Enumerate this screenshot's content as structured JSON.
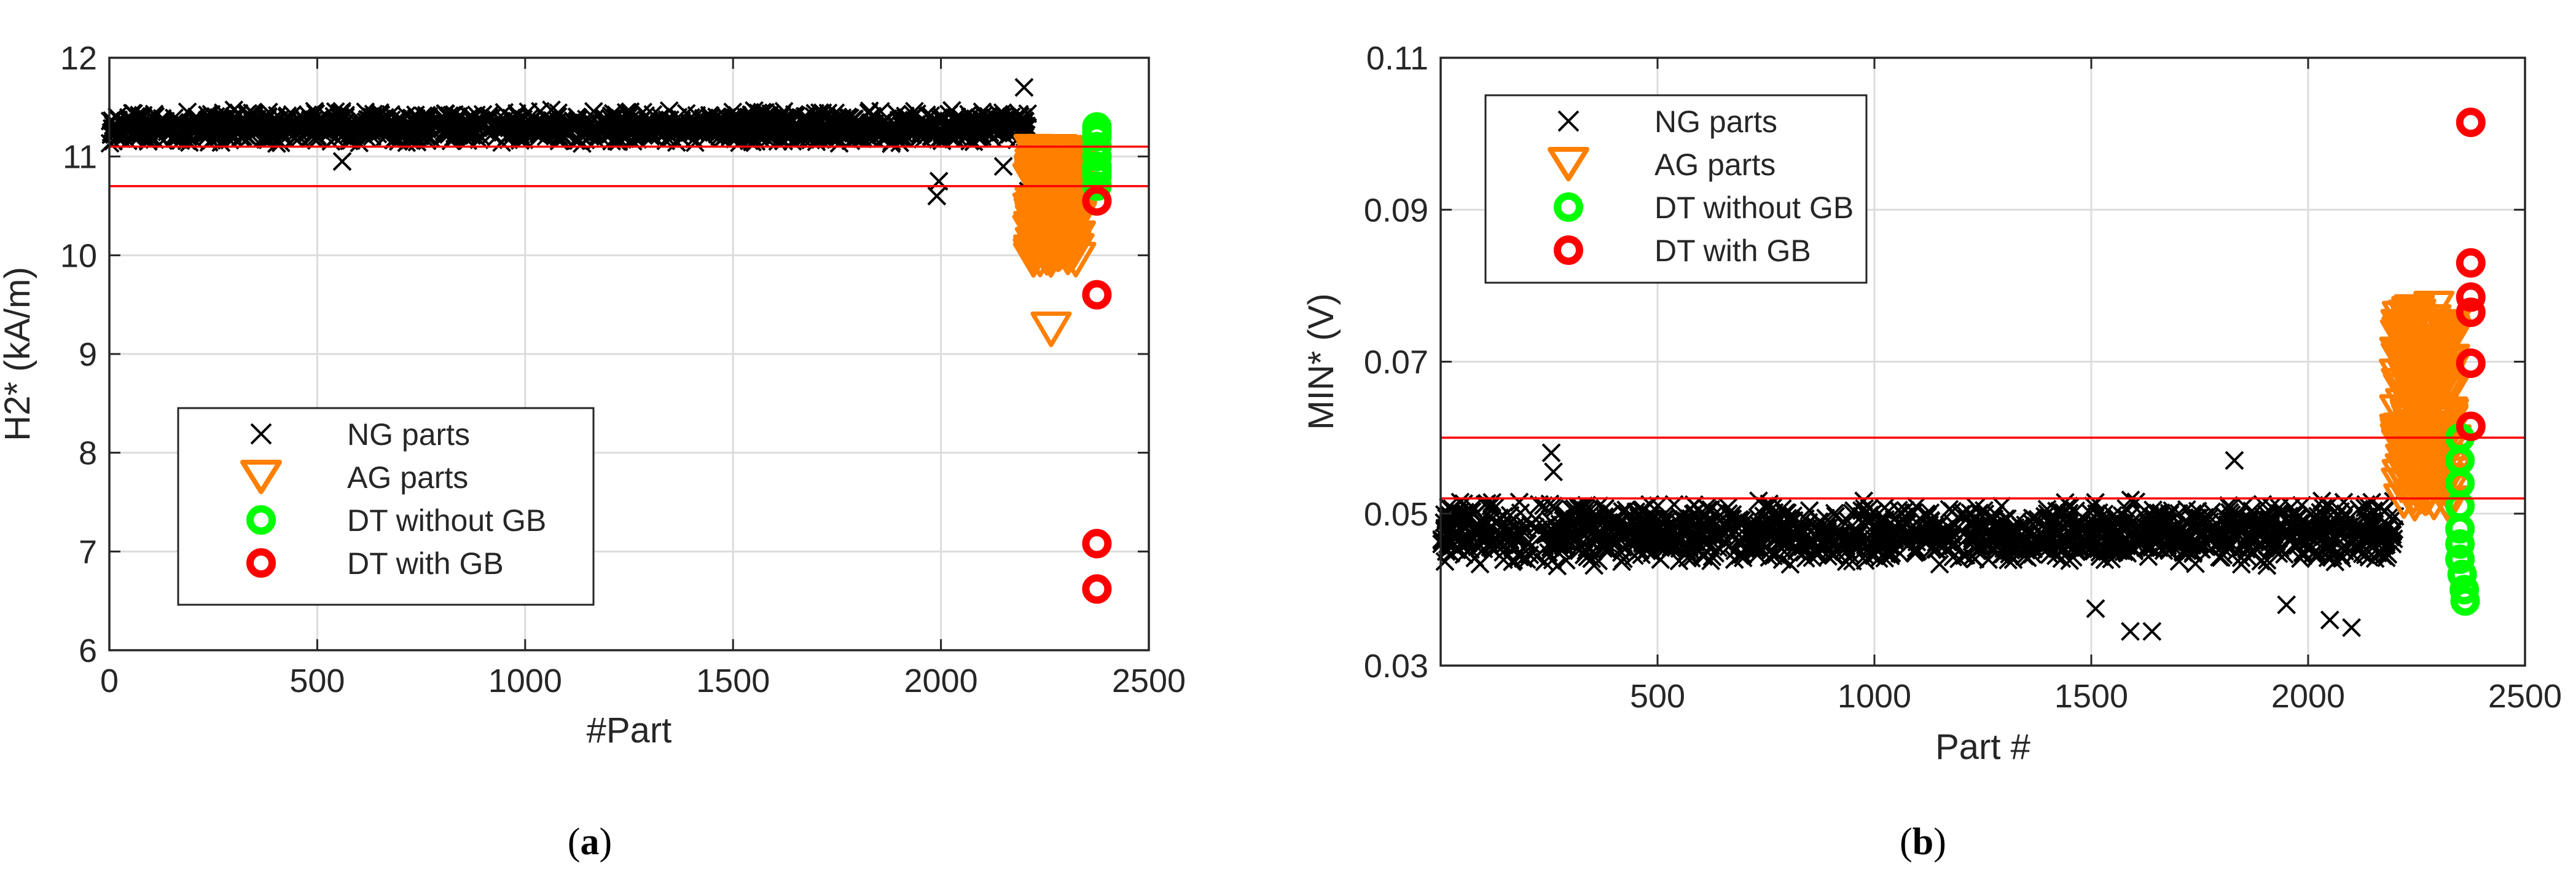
{
  "chart_data": [
    {
      "type": "scatter",
      "panel_label": "a",
      "xlabel": "#Part",
      "ylabel": "H2* (kA/m)",
      "xlim": [
        0,
        2500
      ],
      "ylim": [
        6,
        12
      ],
      "xticks": [
        0,
        500,
        1000,
        1500,
        2000,
        2500
      ],
      "yticks": [
        6,
        7,
        8,
        9,
        10,
        11,
        12
      ],
      "xtick_labels": [
        "0",
        "500",
        "1000",
        "1500",
        "2000",
        "2500"
      ],
      "ytick_labels": [
        "6",
        "7",
        "8",
        "9",
        "10",
        "11",
        "12"
      ],
      "grid": true,
      "legend_position": "lower-left",
      "threshold_lines": [
        11.1,
        10.7
      ],
      "series": [
        {
          "name": "NG parts",
          "marker": "x",
          "color": "#000000",
          "band": {
            "x_range": [
              0,
              2210
            ],
            "y_center": 11.3,
            "y_halfwidth": 0.18
          },
          "outliers": [
            [
              560,
              10.95
            ],
            [
              1990,
              10.6
            ],
            [
              1995,
              10.75
            ],
            [
              2210,
              10.65
            ],
            [
              2150,
              10.9
            ],
            [
              2200,
              11.7
            ]
          ]
        },
        {
          "name": "AG parts",
          "marker": "triangle-down",
          "color": "#FF7F00",
          "band": {
            "x_range": [
              2220,
              2330
            ],
            "y_center": 10.5,
            "y_halfwidth": 0.55
          },
          "outliers": [
            [
              2265,
              9.25
            ]
          ]
        },
        {
          "name": "DT without GB",
          "marker": "circle",
          "color": "#00FF00",
          "points": [
            [
              2375,
              11.3
            ],
            [
              2375,
              11.2
            ],
            [
              2375,
              11.1
            ],
            [
              2375,
              11.0
            ],
            [
              2375,
              10.9
            ],
            [
              2375,
              10.85
            ],
            [
              2375,
              10.8
            ],
            [
              2375,
              10.7
            ],
            [
              2375,
              11.25
            ]
          ]
        },
        {
          "name": "DT with GB",
          "marker": "circle",
          "color": "#FF0000",
          "points": [
            [
              2375,
              10.55
            ],
            [
              2375,
              9.6
            ],
            [
              2375,
              7.08
            ],
            [
              2375,
              6.62
            ]
          ]
        }
      ]
    },
    {
      "type": "scatter",
      "panel_label": "b",
      "xlabel": "Part #",
      "ylabel": "MIN* (V)",
      "xlim": [
        0,
        2500
      ],
      "ylim": [
        0.03,
        0.11
      ],
      "xticks": [
        500,
        1000,
        1500,
        2000,
        2500
      ],
      "yticks": [
        0.03,
        0.05,
        0.07,
        0.09,
        0.11
      ],
      "xtick_labels": [
        "500",
        "1000",
        "1500",
        "2000",
        "2500"
      ],
      "ytick_labels": [
        "0.03",
        "0.05",
        "0.07",
        "0.09",
        "0.11"
      ],
      "grid": true,
      "legend_position": "top-left",
      "threshold_lines": [
        0.06,
        0.052
      ],
      "series": [
        {
          "name": "NG parts",
          "marker": "x",
          "color": "#000000",
          "band": {
            "x_range": [
              0,
              2200
            ],
            "y_center": 0.0475,
            "y_halfwidth": 0.0045
          },
          "outliers": [
            [
              255,
              0.058
            ],
            [
              260,
              0.0555
            ],
            [
              1510,
              0.0375
            ],
            [
              1590,
              0.0345
            ],
            [
              1640,
              0.0345
            ],
            [
              1830,
              0.057
            ],
            [
              2100,
              0.035
            ],
            [
              2050,
              0.036
            ],
            [
              1950,
              0.038
            ]
          ]
        },
        {
          "name": "AG parts",
          "marker": "triangle-down",
          "color": "#FF7F00",
          "band": {
            "x_range": [
              2210,
              2330
            ],
            "y_center": 0.064,
            "y_halfwidth": 0.013
          },
          "outliers": [
            [
              2290,
              0.077
            ]
          ]
        },
        {
          "name": "DT without GB",
          "marker": "circle",
          "color": "#00FF00",
          "points": [
            [
              2350,
              0.06
            ],
            [
              2350,
              0.057
            ],
            [
              2350,
              0.054
            ],
            [
              2350,
              0.051
            ],
            [
              2350,
              0.048
            ],
            [
              2350,
              0.046
            ],
            [
              2350,
              0.044
            ],
            [
              2355,
              0.042
            ],
            [
              2360,
              0.04
            ],
            [
              2362,
              0.0385
            ]
          ]
        },
        {
          "name": "DT with GB",
          "marker": "circle",
          "color": "#FF0000",
          "points": [
            [
              2375,
              0.1015
            ],
            [
              2375,
              0.083
            ],
            [
              2375,
              0.0785
            ],
            [
              2375,
              0.0765
            ],
            [
              2375,
              0.0698
            ],
            [
              2375,
              0.0615
            ]
          ]
        }
      ]
    }
  ],
  "captions": {
    "a": "(a)",
    "b": "(b)"
  }
}
